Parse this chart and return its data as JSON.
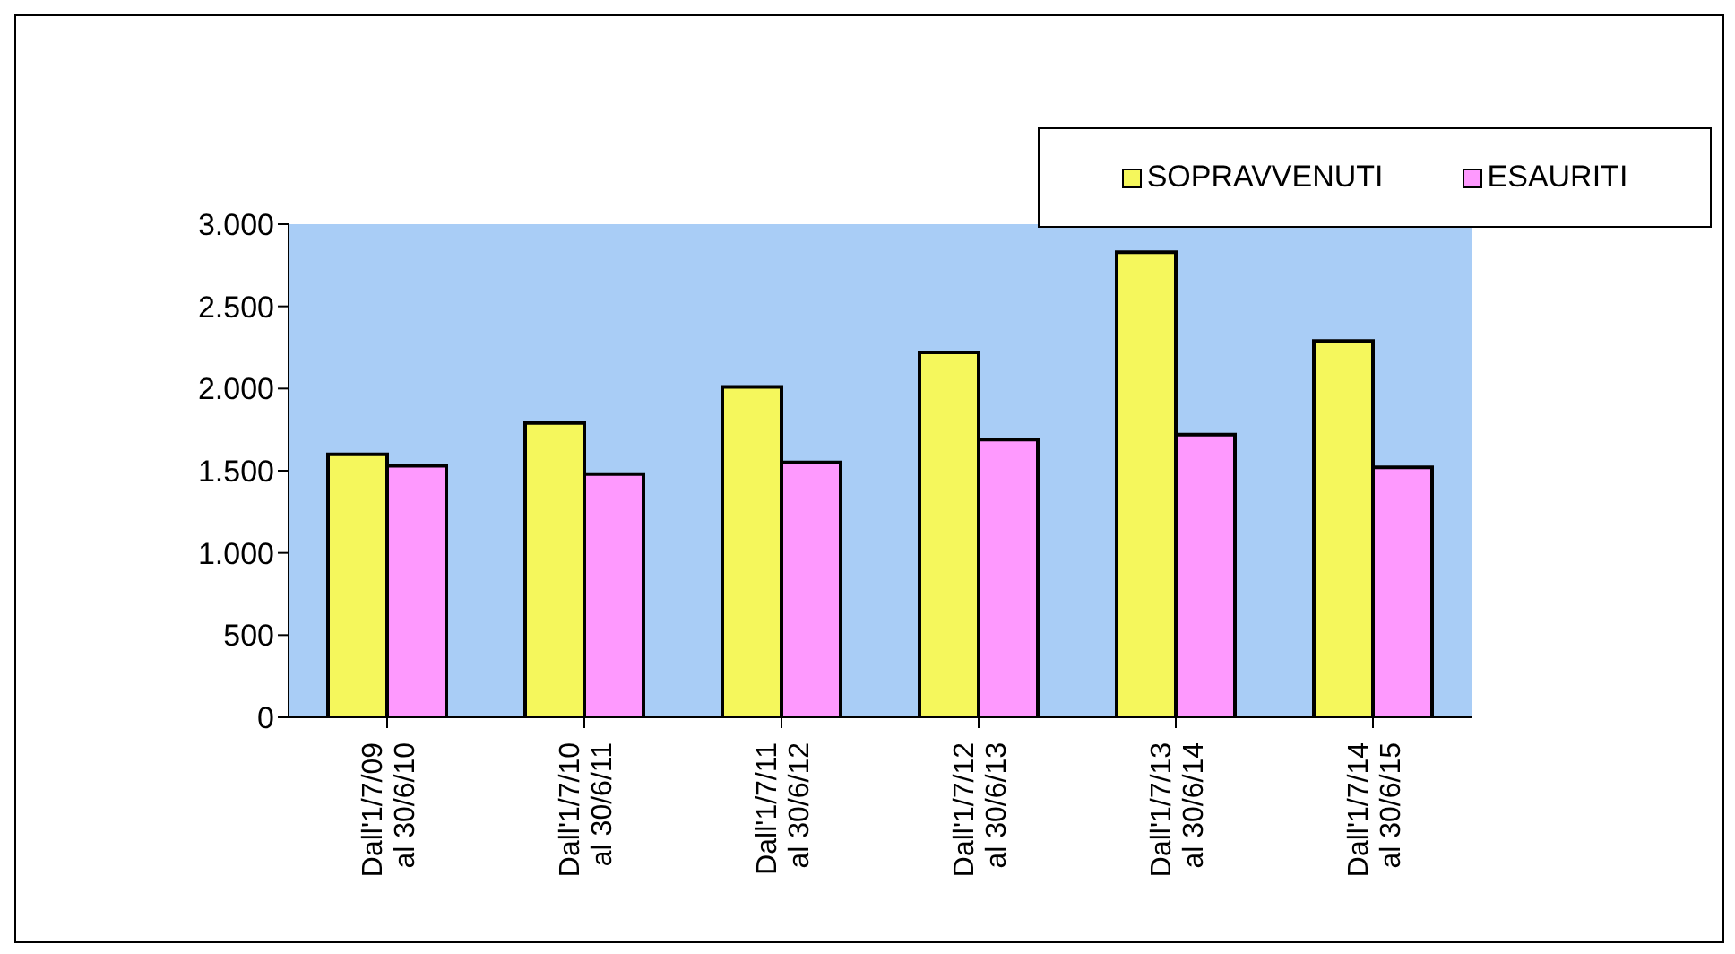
{
  "chart_data": {
    "type": "bar",
    "categories": [
      "Dall'1/7/09\nal 30/6/10",
      "Dall'1/7/10\nal 30/6/11",
      "Dall'1/7/11\nal 30/6/12",
      "Dall'1/7/12\nal 30/6/13",
      "Dall'1/7/13\nal 30/6/14",
      "Dall'1/7/14\nal 30/6/15"
    ],
    "series": [
      {
        "name": "SOPRAVVENUTI",
        "color": "#f5f75c",
        "values": [
          1600,
          1790,
          2010,
          2220,
          2830,
          2290
        ]
      },
      {
        "name": "ESAURITI",
        "color": "#fe99fe",
        "values": [
          1530,
          1480,
          1550,
          1690,
          1720,
          1520
        ]
      }
    ],
    "ylim": [
      0,
      3000
    ],
    "yticks": [
      {
        "value": 0,
        "label": "0"
      },
      {
        "value": 500,
        "label": "500"
      },
      {
        "value": 1000,
        "label": "1.000"
      },
      {
        "value": 1500,
        "label": "1.500"
      },
      {
        "value": 2000,
        "label": "2.000"
      },
      {
        "value": 2500,
        "label": "2.500"
      },
      {
        "value": 3000,
        "label": "3.000"
      }
    ],
    "legend": "top right"
  }
}
